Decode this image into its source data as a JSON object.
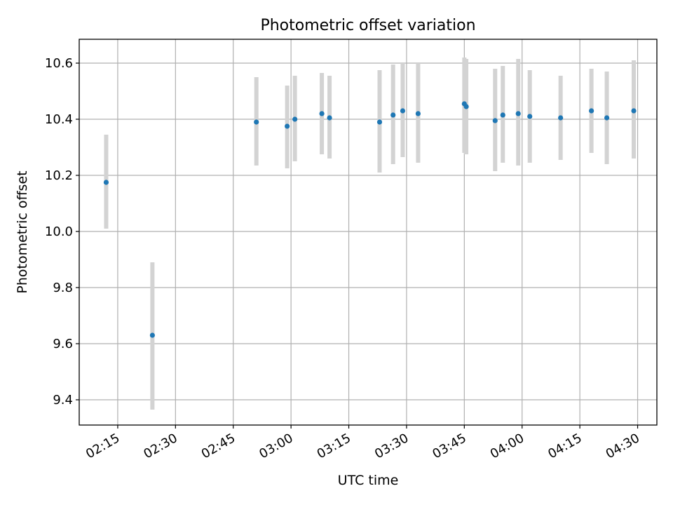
{
  "chart_data": {
    "type": "scatter",
    "title": "Photometric offset variation",
    "xlabel": "UTC time",
    "ylabel": "Photometric offset",
    "x_unit": "UTC time (HH:MM)",
    "xlim": [
      "02:05",
      "04:35"
    ],
    "ylim": [
      9.31,
      10.685
    ],
    "x_ticks": [
      "02:15",
      "02:30",
      "02:45",
      "03:00",
      "03:15",
      "03:30",
      "03:45",
      "04:00",
      "04:15",
      "04:30"
    ],
    "y_ticks": [
      "9.4",
      "9.6",
      "9.8",
      "10.0",
      "10.2",
      "10.4",
      "10.6"
    ],
    "grid": true,
    "colors": {
      "marker": "#1f77b4",
      "errorbar": "#d3d3d3",
      "grid": "#b0b0b0"
    },
    "points": [
      {
        "x": "02:12:00",
        "y": 10.175,
        "ylow": 10.01,
        "yhigh": 10.345
      },
      {
        "x": "02:24:00",
        "y": 9.63,
        "ylow": 9.365,
        "yhigh": 9.89
      },
      {
        "x": "02:51:00",
        "y": 10.39,
        "ylow": 10.235,
        "yhigh": 10.55
      },
      {
        "x": "02:59:00",
        "y": 10.375,
        "ylow": 10.225,
        "yhigh": 10.52
      },
      {
        "x": "03:01:00",
        "y": 10.4,
        "ylow": 10.25,
        "yhigh": 10.555
      },
      {
        "x": "03:08:00",
        "y": 10.42,
        "ylow": 10.275,
        "yhigh": 10.565
      },
      {
        "x": "03:10:00",
        "y": 10.405,
        "ylow": 10.26,
        "yhigh": 10.555
      },
      {
        "x": "03:23:00",
        "y": 10.39,
        "ylow": 10.21,
        "yhigh": 10.575
      },
      {
        "x": "03:26:30",
        "y": 10.415,
        "ylow": 10.24,
        "yhigh": 10.595
      },
      {
        "x": "03:29:00",
        "y": 10.43,
        "ylow": 10.265,
        "yhigh": 10.6
      },
      {
        "x": "03:33:00",
        "y": 10.42,
        "ylow": 10.245,
        "yhigh": 10.6
      },
      {
        "x": "03:45:00",
        "y": 10.455,
        "ylow": 10.28,
        "yhigh": 10.62
      },
      {
        "x": "03:45:30",
        "y": 10.445,
        "ylow": 10.275,
        "yhigh": 10.615
      },
      {
        "x": "03:53:00",
        "y": 10.395,
        "ylow": 10.215,
        "yhigh": 10.58
      },
      {
        "x": "03:55:00",
        "y": 10.415,
        "ylow": 10.245,
        "yhigh": 10.59
      },
      {
        "x": "03:59:00",
        "y": 10.42,
        "ylow": 10.235,
        "yhigh": 10.615
      },
      {
        "x": "04:02:00",
        "y": 10.41,
        "ylow": 10.245,
        "yhigh": 10.575
      },
      {
        "x": "04:10:00",
        "y": 10.405,
        "ylow": 10.255,
        "yhigh": 10.555
      },
      {
        "x": "04:18:00",
        "y": 10.43,
        "ylow": 10.28,
        "yhigh": 10.58
      },
      {
        "x": "04:22:00",
        "y": 10.405,
        "ylow": 10.24,
        "yhigh": 10.57
      },
      {
        "x": "04:29:00",
        "y": 10.43,
        "ylow": 10.26,
        "yhigh": 10.61
      }
    ]
  }
}
